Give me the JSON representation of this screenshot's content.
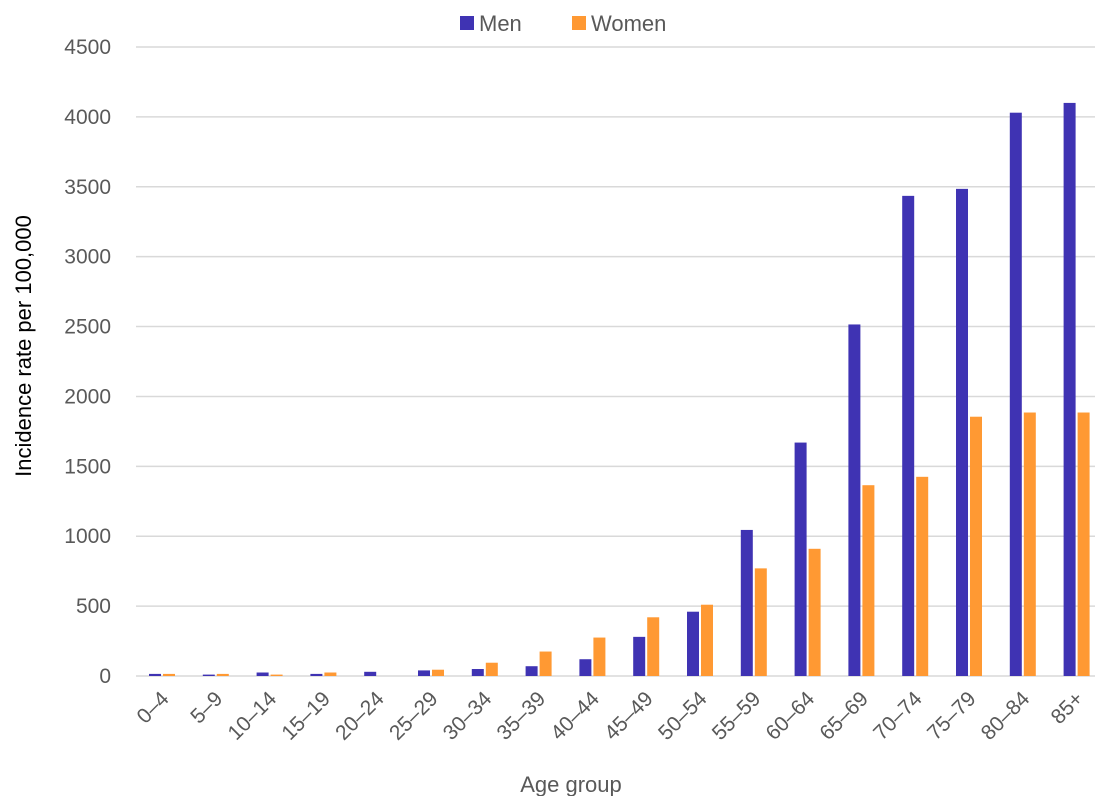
{
  "chart_data": {
    "type": "bar",
    "categories": [
      "0–4",
      "5–9",
      "10–14",
      "15–19",
      "20–24",
      "25–29",
      "30–34",
      "35–39",
      "40–44",
      "45–49",
      "50–54",
      "55–59",
      "60–64",
      "65–69",
      "70–74",
      "75–79",
      "80–84",
      "85+"
    ],
    "series": [
      {
        "name": "Men",
        "color": "#3f33b3",
        "values": [
          15,
          10,
          25,
          15,
          30,
          40,
          50,
          70,
          120,
          280,
          460,
          1045,
          1670,
          2515,
          3435,
          3485,
          4030,
          4100
        ]
      },
      {
        "name": "Women",
        "color": "#ff9933",
        "values": [
          15,
          15,
          10,
          25,
          0,
          45,
          95,
          175,
          275,
          420,
          510,
          770,
          910,
          1365,
          1425,
          1855,
          1885,
          1885
        ]
      }
    ],
    "xlabel": "Age group",
    "ylabel": "Incidence rate per 100,000",
    "ylim": [
      0,
      4500
    ],
    "yticks": [
      "0",
      "500",
      "1000",
      "1500",
      "2000",
      "2500",
      "3000",
      "3500",
      "4000",
      "4500"
    ],
    "grid": true,
    "legend": "top-center"
  }
}
